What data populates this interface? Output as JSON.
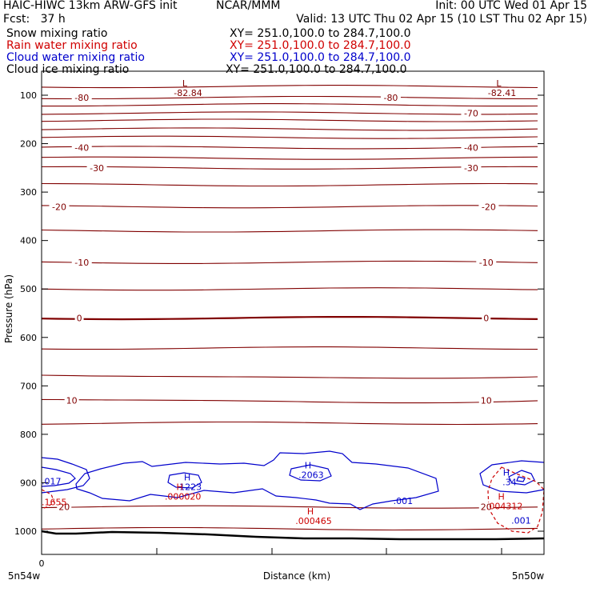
{
  "header": {
    "left_line1": "HAIC-HIWC 13km ARW-GFS init",
    "center_line1": "NCAR/MMM",
    "right_line1": "Init: 00 UTC Wed 01 Apr 15",
    "left_line2": "Fcst:   37 h",
    "right_line2": "Valid: 13 UTC Thu 02 Apr 15 (10 LST Thu 02 Apr 15)"
  },
  "legend": [
    {
      "name": "Snow mixing ratio",
      "xy": "XY= 251.0,100.0 to 284.7,100.0",
      "color": "#000000"
    },
    {
      "name": "Rain water mixing ratio",
      "xy": "XY= 251.0,100.0 to 284.7,100.0",
      "color": "#d00000"
    },
    {
      "name": "Cloud water mixing ratio",
      "xy": "XY= 251.0,100.0 to 284.7,100.0",
      "color": "#0000cc"
    },
    {
      "name": "Cloud ice mixing ratio",
      "xy": "XY= 251.0,100.0 to 284.7,100.0",
      "color": "#000000"
    }
  ],
  "chart_data": {
    "type": "contour",
    "ylabel": "Pressure (hPa)",
    "xlabel": "Distance (km)",
    "y_ticks": [
      100,
      200,
      300,
      400,
      500,
      600,
      700,
      800,
      900,
      1000
    ],
    "ylim": [
      1050,
      75
    ],
    "x_tick_labels": {
      "left_top": "0",
      "left_bottom": "5n54w",
      "right_bottom": "5n50w"
    },
    "temperature_contours": [
      {
        "p": 82,
        "label": "",
        "bold": false
      },
      {
        "p": 105,
        "label": "-80",
        "bold": false
      },
      {
        "p": 120,
        "label": "",
        "bold": false
      },
      {
        "p": 137,
        "label": "-70",
        "bold": false
      },
      {
        "p": 152,
        "label": "",
        "bold": false
      },
      {
        "p": 170,
        "label": "",
        "bold": false
      },
      {
        "p": 187,
        "label": "",
        "bold": false
      },
      {
        "p": 208,
        "label": "-40",
        "bold": false
      },
      {
        "p": 230,
        "label": "",
        "bold": false
      },
      {
        "p": 250,
        "label": "-30",
        "bold": false
      },
      {
        "p": 285,
        "label": "",
        "bold": false
      },
      {
        "p": 330,
        "label": "-20",
        "bold": false
      },
      {
        "p": 380,
        "label": "",
        "bold": false
      },
      {
        "p": 445,
        "label": "-10",
        "bold": false
      },
      {
        "p": 500,
        "label": "",
        "bold": false
      },
      {
        "p": 560,
        "label": "0",
        "bold": true
      },
      {
        "p": 622,
        "label": "",
        "bold": false
      },
      {
        "p": 680,
        "label": "",
        "bold": false
      },
      {
        "p": 730,
        "label": "10",
        "bold": false
      },
      {
        "p": 777,
        "label": "",
        "bold": false
      },
      {
        "p": 950,
        "label": "20",
        "bold": false
      },
      {
        "p": 995,
        "label": "",
        "bold": false
      }
    ],
    "temp_label_positions": [
      {
        "text": "-80",
        "dist": 0.08,
        "p": 105
      },
      {
        "text": "-80",
        "dist": 0.695,
        "p": 105
      },
      {
        "text": "-70",
        "dist": 0.855,
        "p": 137
      },
      {
        "text": "-40",
        "dist": 0.08,
        "p": 208
      },
      {
        "text": "-40",
        "dist": 0.855,
        "p": 208
      },
      {
        "text": "-30",
        "dist": 0.11,
        "p": 250
      },
      {
        "text": "-30",
        "dist": 0.855,
        "p": 250
      },
      {
        "text": "-20",
        "dist": 0.035,
        "p": 330
      },
      {
        "text": "-20",
        "dist": 0.89,
        "p": 330
      },
      {
        "text": "-10",
        "dist": 0.08,
        "p": 445
      },
      {
        "text": "-10",
        "dist": 0.885,
        "p": 445
      },
      {
        "text": "0",
        "dist": 0.075,
        "p": 560
      },
      {
        "text": "0",
        "dist": 0.885,
        "p": 560
      },
      {
        "text": "10",
        "dist": 0.06,
        "p": 730
      },
      {
        "text": "10",
        "dist": 0.885,
        "p": 730
      },
      {
        "text": "20",
        "dist": 0.045,
        "p": 950
      },
      {
        "text": "20",
        "dist": 0.885,
        "p": 950
      }
    ],
    "extrema": [
      {
        "letter": "L",
        "value": "-82.84",
        "dist": 0.285,
        "p": 82,
        "color": "#800000"
      },
      {
        "letter": "L",
        "value": "-82.41",
        "dist": 0.91,
        "p": 82,
        "color": "#800000"
      },
      {
        "letter": "H",
        "value": "1223",
        "dist": 0.29,
        "p": 895,
        "color": "#0000cc"
      },
      {
        "letter": "H",
        "value": ".2063",
        "dist": 0.53,
        "p": 870,
        "color": "#0000cc"
      },
      {
        "letter": "H",
        "value": ".34",
        "dist": 0.925,
        "p": 885,
        "color": "#0000cc"
      },
      {
        "letter": "H",
        "value": ".000020",
        "dist": 0.275,
        "p": 915,
        "color": "#cc0000"
      },
      {
        "letter": "H",
        "value": ".000465",
        "dist": 0.535,
        "p": 965,
        "color": "#cc0000"
      },
      {
        "letter": "H",
        "value": ".004312",
        "dist": 0.915,
        "p": 935,
        "color": "#cc0000"
      }
    ],
    "labels": [
      {
        "text": ".017",
        "dist": 0.0,
        "p": 897,
        "color": "#0000cc"
      },
      {
        "text": ".1655",
        "dist": 0.0,
        "p": 940,
        "color": "#cc0000"
      },
      {
        "text": ".001",
        "dist": 0.7,
        "p": 937,
        "color": "#0000cc"
      },
      {
        "text": ".001",
        "dist": 0.935,
        "p": 978,
        "color": "#0000cc"
      }
    ]
  }
}
